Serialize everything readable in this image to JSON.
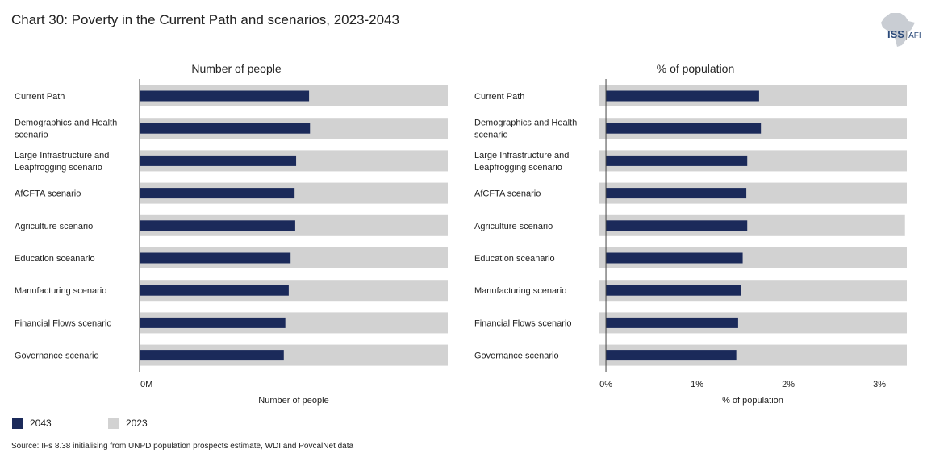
{
  "title": "Chart 30: Poverty in the Current Path and scenarios, 2023-2043",
  "logo": {
    "main": "ISS",
    "sub": "AFI"
  },
  "colors": {
    "series_2043": "#1b2a5a",
    "series_2023": "#d2d2d2"
  },
  "legend": [
    {
      "label": "2043",
      "color": "#1b2a5a"
    },
    {
      "label": "2023",
      "color": "#d2d2d2"
    }
  ],
  "source": "Source: IFs 8.38 initialising from UNPD population prospects estimate, WDI and PovcalNet data",
  "chart_data": [
    {
      "type": "bar",
      "orientation": "horizontal",
      "title": "Number of people",
      "xlabel": "Number of people",
      "ylabel": "",
      "xlim": [
        0,
        100
      ],
      "ticks": [
        {
          "value": 0,
          "label": "0M"
        }
      ],
      "categories": [
        "Current Path",
        "Demographics and Health scenario",
        "Large Infrastructure and Leapfrogging scenario",
        "AfCFTA scenario",
        "Agriculture scenario",
        "Education sceanario",
        "Manufacturing scenario",
        "Financial Flows scenario",
        "Governance scenario"
      ],
      "series": [
        {
          "name": "2023",
          "values": [
            100,
            100,
            100,
            100,
            100,
            100,
            100,
            100,
            100
          ]
        },
        {
          "name": "2043",
          "values": [
            55,
            55.3,
            50.8,
            50.3,
            50.5,
            49,
            48.4,
            47.3,
            46.8
          ]
        }
      ]
    },
    {
      "type": "bar",
      "orientation": "horizontal",
      "title": "% of population",
      "xlabel": "% of population",
      "ylabel": "",
      "xlim": [
        -0.08,
        3.3
      ],
      "ticks": [
        {
          "value": 0,
          "label": "0%"
        },
        {
          "value": 1,
          "label": "1%"
        },
        {
          "value": 2,
          "label": "2%"
        },
        {
          "value": 3,
          "label": "3%"
        }
      ],
      "categories": [
        "Current Path",
        "Demographics and Health scenario",
        "Large Infrastructure and Leapfrogging scenario",
        "AfCFTA scenario",
        "Agriculture scenario",
        "Education sceanario",
        "Manufacturing scenario",
        "Financial Flows scenario",
        "Governance scenario"
      ],
      "series": [
        {
          "name": "2023",
          "values": [
            3.3,
            3.3,
            3.3,
            3.3,
            3.28,
            3.3,
            3.3,
            3.3,
            3.3
          ]
        },
        {
          "name": "2043",
          "values": [
            1.68,
            1.7,
            1.55,
            1.54,
            1.55,
            1.5,
            1.48,
            1.45,
            1.43
          ]
        }
      ]
    }
  ]
}
